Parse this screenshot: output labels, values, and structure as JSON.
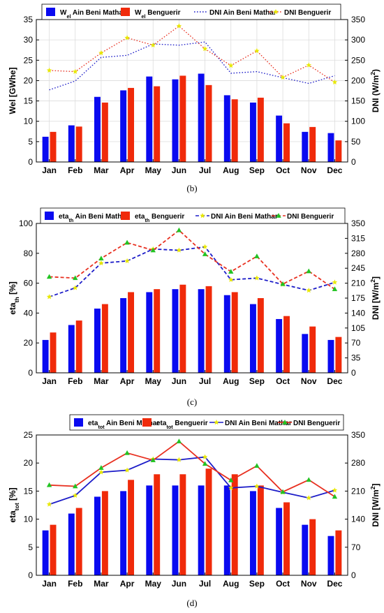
{
  "chart_data": [
    {
      "panel": "(b)",
      "type": "bar+line",
      "categories": [
        "Jan",
        "Feb",
        "Mar",
        "Apr",
        "May",
        "Jun",
        "Jul",
        "Aug",
        "Sep",
        "Oct",
        "Nov",
        "Dec"
      ],
      "ylabel_left": {
        "main": "Wel [GWhe]"
      },
      "ylabel_right": {
        "main": "DNI (W/m",
        "sup": "2",
        "tail": ")"
      },
      "ylim_left": [
        0,
        35
      ],
      "yticks_left": [
        0,
        5,
        10,
        15,
        20,
        25,
        30,
        35
      ],
      "ylim_right": [
        0,
        350
      ],
      "yticks_right": [
        0,
        50,
        100,
        150,
        200,
        250,
        300,
        350
      ],
      "grid": true,
      "legend": [
        {
          "kind": "bar",
          "color": "#0a0af0",
          "main": "W",
          "sub": "el",
          "rest": " Ain Beni Mathar"
        },
        {
          "kind": "bar",
          "color": "#f02a0a",
          "main": "W",
          "sub": "el",
          "rest": " Benguerir"
        },
        {
          "kind": "dotted",
          "color": "#1c1cc8",
          "main": "DNI Ain Beni Mathar"
        },
        {
          "kind": "dotted-marker",
          "color": "#e83020",
          "marker_color": "#e8e800",
          "main": "DNI Benguerir"
        }
      ],
      "bar_series": [
        {
          "name": "Wel Ain Beni Mathar",
          "color": "#0a0af0",
          "values": [
            6.2,
            9.0,
            16.0,
            17.6,
            21.0,
            20.3,
            21.7,
            16.4,
            14.6,
            11.4,
            7.4,
            7.1
          ]
        },
        {
          "name": "Wel Benguerir",
          "color": "#f02a0a",
          "values": [
            7.4,
            8.7,
            14.6,
            18.2,
            18.6,
            21.2,
            18.9,
            15.4,
            15.8,
            9.5,
            8.6,
            5.3
          ]
        }
      ],
      "line_series": [
        {
          "name": "DNI Ain Beni Mathar",
          "color": "#1c1cc8",
          "style": "dotted",
          "axis": "right",
          "values": [
            177,
            199,
            257,
            262,
            290,
            287,
            295,
            218,
            222,
            207,
            193,
            212
          ]
        },
        {
          "name": "DNI Benguerir",
          "color": "#e83020",
          "style": "dotted",
          "marker": "star",
          "marker_color": "#e8e800",
          "axis": "right",
          "values": [
            225,
            222,
            268,
            305,
            287,
            334,
            278,
            237,
            273,
            208,
            238,
            196
          ]
        }
      ]
    },
    {
      "panel": "(c)",
      "type": "bar+line",
      "categories": [
        "Jan",
        "Feb",
        "Mar",
        "Apr",
        "May",
        "Jun",
        "Jul",
        "Aug",
        "Sep",
        "Oct",
        "Nov",
        "Dec"
      ],
      "ylabel_left": {
        "main": "eta",
        "sub": "th",
        "tail": " [%]"
      },
      "ylabel_right": {
        "main": "DNI [W/m",
        "sup": "2",
        "tail": "]"
      },
      "ylim_left": [
        0,
        100
      ],
      "yticks_left": [
        0,
        20,
        40,
        60,
        80,
        100
      ],
      "ylim_right": [
        0,
        350
      ],
      "yticks_right": [
        0,
        35,
        70,
        105,
        140,
        175,
        210,
        245,
        280,
        315,
        350
      ],
      "grid": false,
      "legend": [
        {
          "kind": "bar",
          "color": "#0a0af0",
          "main": "eta",
          "sub": "th",
          "rest": " Ain Beni Mathar"
        },
        {
          "kind": "bar",
          "color": "#f02a0a",
          "main": "eta",
          "sub": "th",
          "rest": " Benguerir"
        },
        {
          "kind": "dashed-marker",
          "color": "#1c1cc8",
          "marker_color": "#e8e800",
          "main": "DNI Ain Beni Mathar"
        },
        {
          "kind": "dashed-marker",
          "color": "#e83020",
          "marker_color": "#22c322",
          "main": "DNI Benguerir"
        }
      ],
      "bar_series": [
        {
          "name": "eta th Ain Beni Mathar",
          "color": "#0a0af0",
          "values": [
            22,
            32,
            43,
            50,
            54,
            56,
            56,
            52,
            46,
            36,
            26,
            22
          ]
        },
        {
          "name": "eta th Benguerir",
          "color": "#f02a0a",
          "values": [
            27,
            35,
            46,
            54,
            56,
            59,
            58,
            54,
            50,
            38,
            31,
            24
          ]
        }
      ],
      "line_series": [
        {
          "name": "DNI Ain Beni Mathar",
          "color": "#1c1cc8",
          "style": "dashed",
          "marker": "star",
          "marker_color": "#e8e800",
          "axis": "right",
          "values": [
            178,
            199,
            257,
            262,
            290,
            287,
            295,
            218,
            222,
            207,
            193,
            212
          ]
        },
        {
          "name": "DNI Benguerir",
          "color": "#e83020",
          "style": "dashed",
          "marker": "triangle",
          "marker_color": "#22c322",
          "axis": "right",
          "values": [
            225,
            222,
            268,
            305,
            287,
            334,
            278,
            237,
            273,
            208,
            238,
            196
          ]
        }
      ]
    },
    {
      "panel": "(d)",
      "type": "bar+line",
      "categories": [
        "Jan",
        "Feb",
        "Mar",
        "Apr",
        "May",
        "Jun",
        "Jul",
        "Aug",
        "Sep",
        "Oct",
        "Nov",
        "Dec"
      ],
      "ylabel_left": {
        "main": "eta",
        "sub": "tot",
        "tail": " [%]"
      },
      "ylabel_right": {
        "main": "DNI [W/m",
        "sup": "2",
        "tail": "]"
      },
      "ylim_left": [
        0,
        25
      ],
      "yticks_left": [
        0,
        5,
        10,
        15,
        20,
        25
      ],
      "ylim_right": [
        0,
        350
      ],
      "yticks_right": [
        0,
        70,
        140,
        210,
        280,
        350
      ],
      "grid": false,
      "legend": [
        {
          "kind": "bar",
          "color": "#0a0af0",
          "main": "eta",
          "sub": "tot",
          "rest": " Ain Beni Mathar"
        },
        {
          "kind": "bar",
          "color": "#f02a0a",
          "main": "eta",
          "sub": "tot",
          "rest": " Benguerir"
        },
        {
          "kind": "solid-marker",
          "color": "#1c1cc8",
          "marker_color": "#e8e800",
          "main": "DNI Ain Beni Mathar"
        },
        {
          "kind": "solid-marker",
          "color": "#e83020",
          "marker_color": "#22c322",
          "main": "DNI Benguerir"
        }
      ],
      "bar_series": [
        {
          "name": "eta tot Ain Beni Mathar",
          "color": "#0a0af0",
          "values": [
            8,
            11,
            14,
            15,
            16,
            16,
            16,
            16,
            15,
            12,
            9,
            7
          ]
        },
        {
          "name": "eta tot Benguerir",
          "color": "#f02a0a",
          "values": [
            9,
            12,
            15,
            17,
            18,
            18,
            19,
            18,
            16,
            13,
            10,
            8
          ]
        }
      ],
      "line_series": [
        {
          "name": "DNI Ain Beni Mathar",
          "color": "#1c1cc8",
          "style": "solid",
          "marker": "star",
          "marker_color": "#e8e800",
          "axis": "right",
          "values": [
            177,
            199,
            257,
            262,
            290,
            288,
            295,
            218,
            222,
            207,
            193,
            212
          ]
        },
        {
          "name": "DNI Benguerir",
          "color": "#e83020",
          "style": "solid",
          "marker": "triangle",
          "marker_color": "#22c322",
          "axis": "right",
          "values": [
            225,
            222,
            268,
            305,
            287,
            334,
            278,
            237,
            273,
            208,
            238,
            196
          ]
        }
      ]
    }
  ]
}
